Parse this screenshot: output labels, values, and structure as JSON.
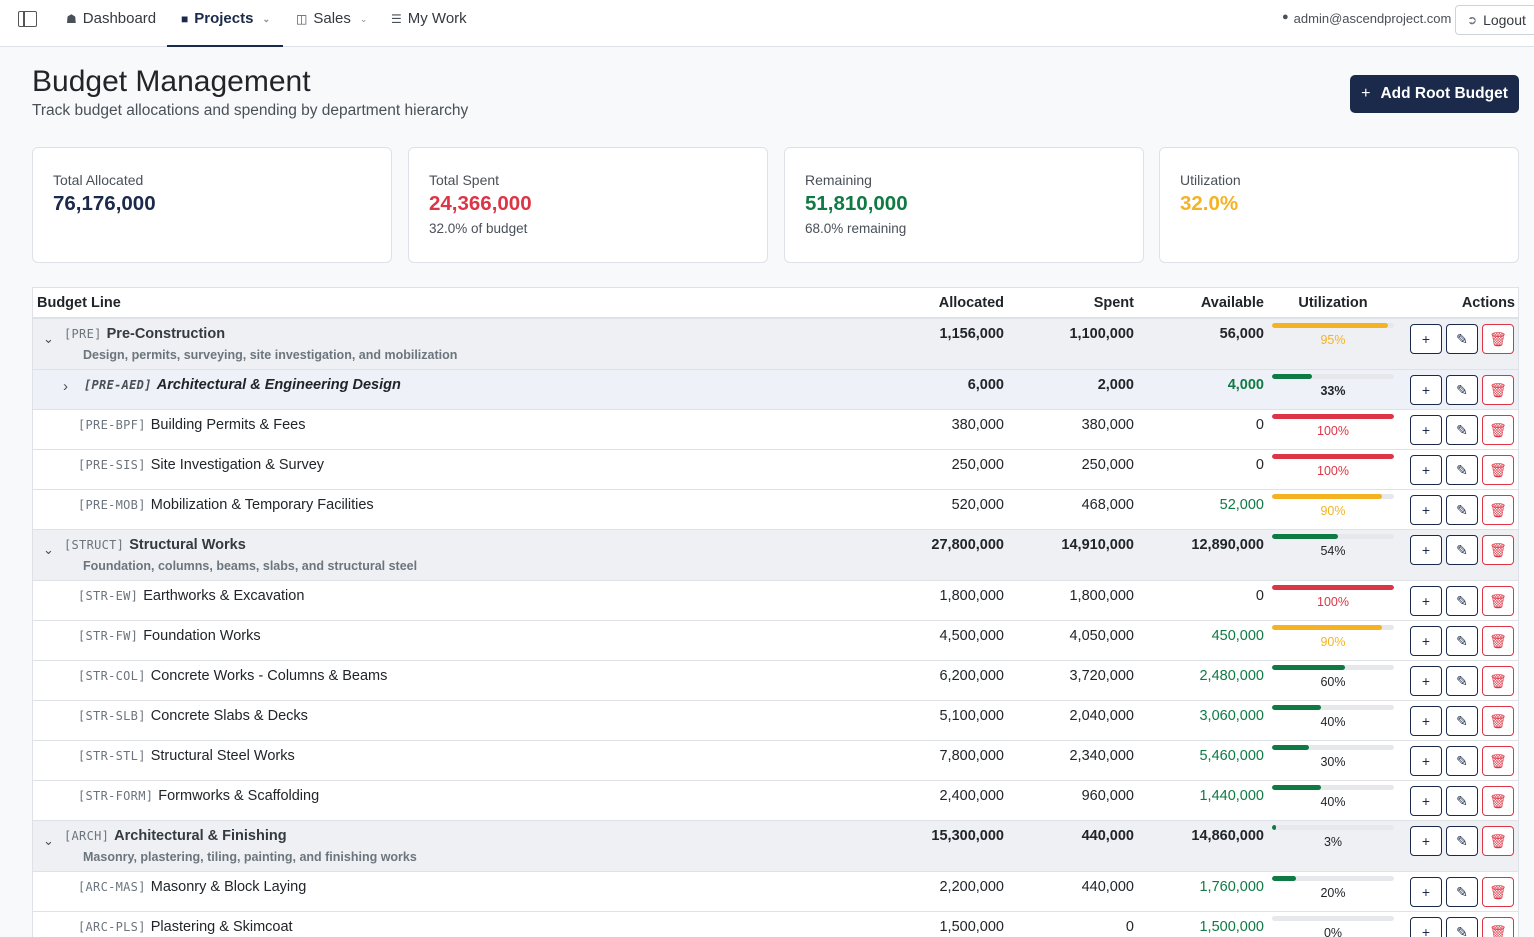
{
  "nav": {
    "dashboard": "Dashboard",
    "projects": "Projects",
    "sales": "Sales",
    "mywork": "My Work",
    "user": "admin@ascendproject.com",
    "logout": "Logout"
  },
  "page": {
    "title": "Budget Management",
    "subtitle": "Track budget allocations and spending by department hierarchy",
    "add_root": "Add Root Budget"
  },
  "cards": [
    {
      "label": "Total Allocated",
      "value": "76,176,000",
      "sub": "",
      "color": "#1b2a4a"
    },
    {
      "label": "Total Spent",
      "value": "24,366,000",
      "sub": "32.0% of budget",
      "color": "#dc3545"
    },
    {
      "label": "Remaining",
      "value": "51,810,000",
      "sub": "68.0% remaining",
      "color": "#0f7a44"
    },
    {
      "label": "Utilization",
      "value": "32.0%",
      "sub": "",
      "color": "#f5b324"
    }
  ],
  "table": {
    "headers": {
      "line": "Budget Line",
      "allocated": "Allocated",
      "spent": "Spent",
      "available": "Available",
      "utilization": "Utilization",
      "actions": "Actions"
    },
    "rows": [
      {
        "type": "parent",
        "code": "[PRE]",
        "name": "Pre-Construction",
        "desc": "Design, permits, surveying, site investigation, and mobilization",
        "allocated": "1,156,000",
        "spent": "1,100,000",
        "available": "56,000",
        "pct": 95
      },
      {
        "type": "sub",
        "code": "[PRE-AED]",
        "name": "Architectural & Engineering Design",
        "allocated": "6,000",
        "spent": "2,000",
        "available": "4,000",
        "pct": 33
      },
      {
        "type": "leaf",
        "code": "[PRE-BPF]",
        "name": "Building Permits & Fees",
        "allocated": "380,000",
        "spent": "380,000",
        "available": "0",
        "pct": 100
      },
      {
        "type": "leaf",
        "code": "[PRE-SIS]",
        "name": "Site Investigation & Survey",
        "allocated": "250,000",
        "spent": "250,000",
        "available": "0",
        "pct": 100
      },
      {
        "type": "leaf",
        "code": "[PRE-MOB]",
        "name": "Mobilization & Temporary Facilities",
        "allocated": "520,000",
        "spent": "468,000",
        "available": "52,000",
        "pct": 90
      },
      {
        "type": "parent",
        "code": "[STRUCT]",
        "name": "Structural Works",
        "desc": "Foundation, columns, beams, slabs, and structural steel",
        "allocated": "27,800,000",
        "spent": "14,910,000",
        "available": "12,890,000",
        "pct": 54
      },
      {
        "type": "leaf",
        "code": "[STR-EW]",
        "name": "Earthworks & Excavation",
        "allocated": "1,800,000",
        "spent": "1,800,000",
        "available": "0",
        "pct": 100
      },
      {
        "type": "leaf",
        "code": "[STR-FW]",
        "name": "Foundation Works",
        "allocated": "4,500,000",
        "spent": "4,050,000",
        "available": "450,000",
        "pct": 90
      },
      {
        "type": "leaf",
        "code": "[STR-COL]",
        "name": "Concrete Works - Columns & Beams",
        "allocated": "6,200,000",
        "spent": "3,720,000",
        "available": "2,480,000",
        "pct": 60
      },
      {
        "type": "leaf",
        "code": "[STR-SLB]",
        "name": "Concrete Slabs & Decks",
        "allocated": "5,100,000",
        "spent": "2,040,000",
        "available": "3,060,000",
        "pct": 40
      },
      {
        "type": "leaf",
        "code": "[STR-STL]",
        "name": "Structural Steel Works",
        "allocated": "7,800,000",
        "spent": "2,340,000",
        "available": "5,460,000",
        "pct": 30
      },
      {
        "type": "leaf",
        "code": "[STR-FORM]",
        "name": "Formworks & Scaffolding",
        "allocated": "2,400,000",
        "spent": "960,000",
        "available": "1,440,000",
        "pct": 40
      },
      {
        "type": "parent",
        "code": "[ARCH]",
        "name": "Architectural & Finishing",
        "desc": "Masonry, plastering, tiling, painting, and finishing works",
        "allocated": "15,300,000",
        "spent": "440,000",
        "available": "14,860,000",
        "pct": 3
      },
      {
        "type": "leaf",
        "code": "[ARC-MAS]",
        "name": "Masonry & Block Laying",
        "allocated": "2,200,000",
        "spent": "440,000",
        "available": "1,760,000",
        "pct": 20
      },
      {
        "type": "leaf",
        "code": "[ARC-PLS]",
        "name": "Plastering & Skimcoat",
        "allocated": "1,500,000",
        "spent": "0",
        "available": "1,500,000",
        "pct": 0
      }
    ]
  },
  "colors": {
    "navy": "#1b2a4a",
    "green": "#0f7a44",
    "red": "#dc3545",
    "amber": "#f5b324"
  },
  "icons": {
    "toggle_expanded": "chevron-down-icon",
    "toggle_collapsed": "chevron-right-icon",
    "add": "plus-icon",
    "edit": "pencil-icon",
    "delete": "trash-icon"
  }
}
